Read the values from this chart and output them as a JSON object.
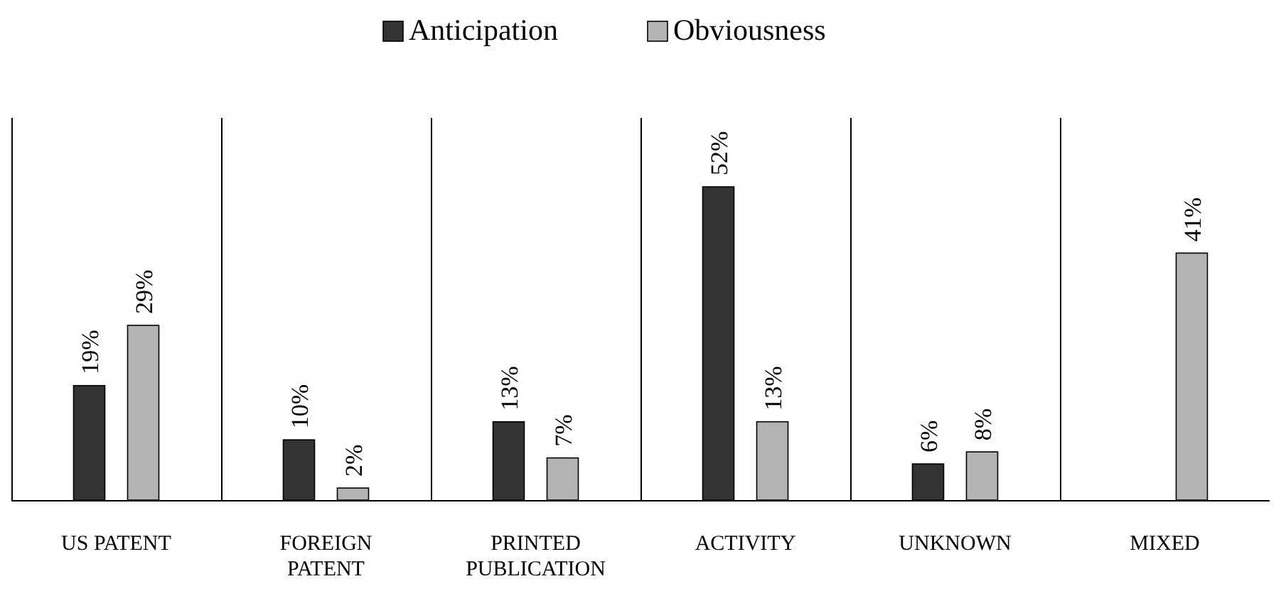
{
  "chart_data": {
    "type": "bar",
    "categories": [
      "US PATENT",
      "FOREIGN PATENT",
      "PRINTED PUBLICATION",
      "ACTIVITY",
      "UNKNOWN",
      "MIXED"
    ],
    "series": [
      {
        "name": "Anticipation",
        "color": "#333333",
        "values": [
          19,
          10,
          13,
          52,
          6,
          null
        ],
        "value_labels": [
          "19%",
          "10%",
          "13%",
          "52%",
          "6%",
          null
        ]
      },
      {
        "name": "Obviousness",
        "color": "#b3b3b3",
        "values": [
          29,
          2,
          7,
          13,
          8,
          41
        ],
        "value_labels": [
          "29%",
          "2%",
          "7%",
          "13%",
          "8%",
          "41%"
        ]
      }
    ],
    "legend": "top",
    "grid": "x"
  }
}
